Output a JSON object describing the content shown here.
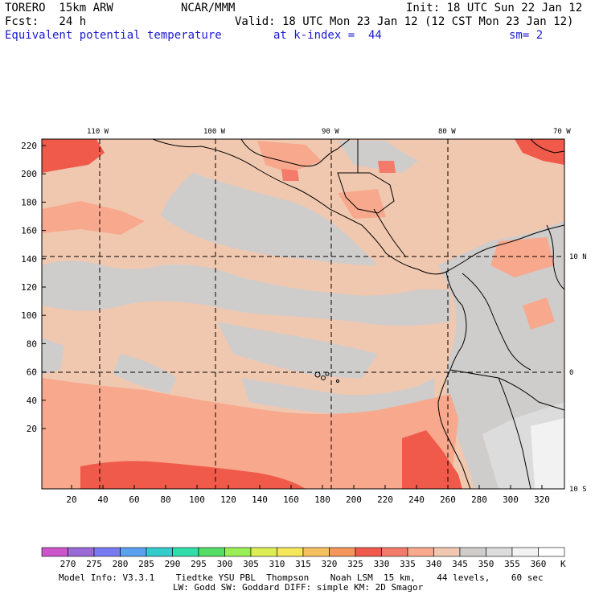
{
  "header": {
    "model": "TORERO  15km ARW",
    "org": "NCAR/MMM",
    "init": "Init: 18 UTC Sun 22 Jan 12",
    "fcst": "Fcst:   24 h",
    "valid": "Valid: 18 UTC Mon 23 Jan 12 (12 CST Mon 23 Jan 12)",
    "field": "Equivalent potential temperature",
    "level": "at k-index =  44",
    "smooth": "sm= 2"
  },
  "map": {
    "lon_labels": [
      "110 W",
      "100 W",
      "90 W",
      "80 W",
      "70 W"
    ],
    "lat_labels": [
      "10 N",
      "0",
      "10 S"
    ],
    "y_ticks": [
      "220",
      "200",
      "180",
      "160",
      "140",
      "120",
      "100",
      "80",
      "60",
      "40",
      "20"
    ],
    "x_ticks": [
      "20",
      "40",
      "60",
      "80",
      "100",
      "120",
      "140",
      "160",
      "180",
      "200",
      "220",
      "240",
      "260",
      "280",
      "300",
      "320"
    ]
  },
  "colorbar": {
    "labels": [
      "270",
      "275",
      "280",
      "285",
      "290",
      "295",
      "300",
      "305",
      "310",
      "315",
      "320",
      "325",
      "330",
      "335",
      "340",
      "345",
      "350",
      "355",
      "360"
    ],
    "unit": "K",
    "colors": [
      "#cc55cc",
      "#9a6ad6",
      "#7a7af0",
      "#5aa0ee",
      "#33cccc",
      "#33ddaa",
      "#55dd66",
      "#99ee55",
      "#ddee55",
      "#f5e65a",
      "#f5c060",
      "#f5965a",
      "#f05a4a",
      "#f47a6a",
      "#f8a88c",
      "#f0c8b0",
      "#cfcccc",
      "#dcdcdc",
      "#f2f2f2",
      "#ffffff"
    ]
  },
  "footer": {
    "line1": "Model Info: V3.3.1    Tiedtke YSU PBL  Thompson    Noah LSM  15 km,    44 levels,    60 sec",
    "line2": "LW: Godd SW: Goddard DIFF: simple KM: 2D Smagor"
  }
}
